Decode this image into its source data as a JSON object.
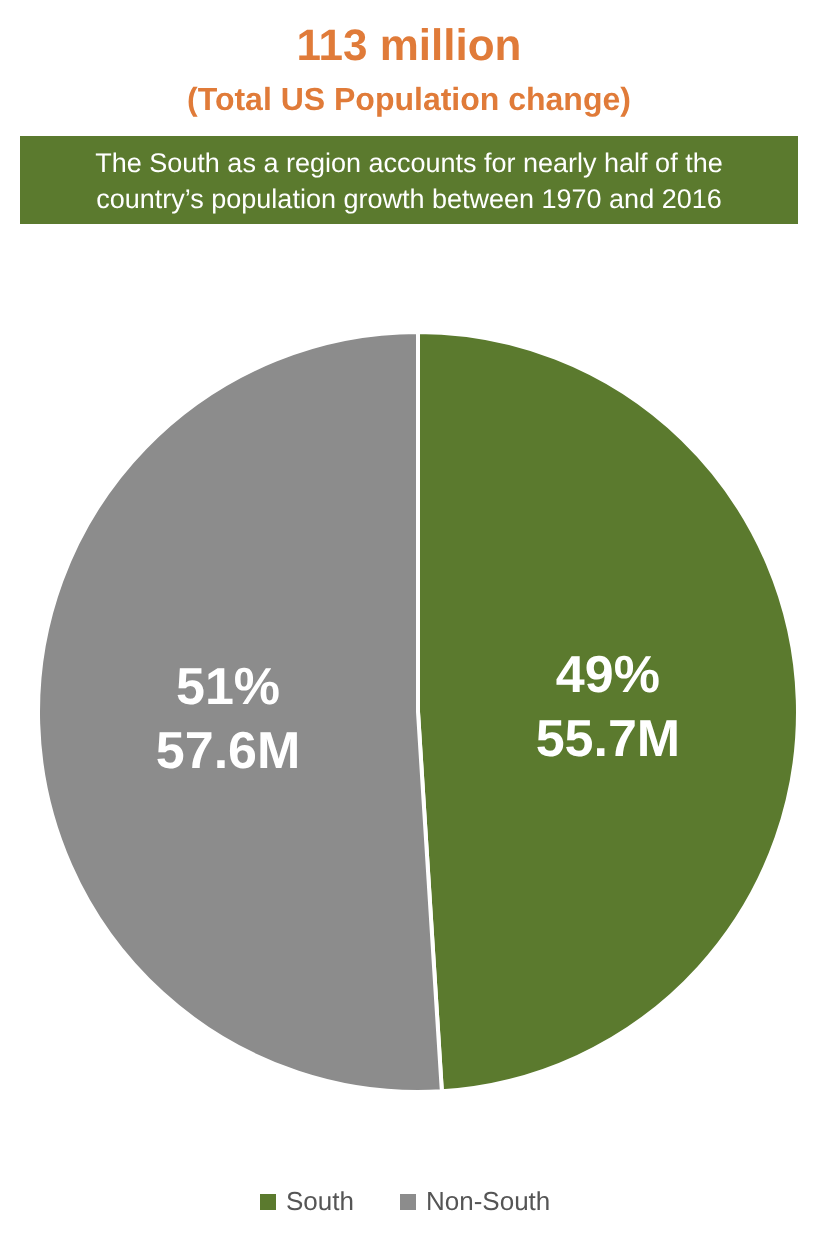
{
  "chart_data": {
    "type": "pie",
    "title": "113 million",
    "subtitle": "(Total US Population change)",
    "annotations": [
      "The South as a region accounts for nearly half of the country’s population growth between 1970 and 2016"
    ],
    "categories": [
      "South",
      "Non-South"
    ],
    "values": [
      49,
      51
    ],
    "colors": [
      "#5b7a2e",
      "#8c8c8c"
    ],
    "value_labels": [
      "49%\n55.7M",
      "51%\n57.6M"
    ],
    "legend": "bottom"
  }
}
